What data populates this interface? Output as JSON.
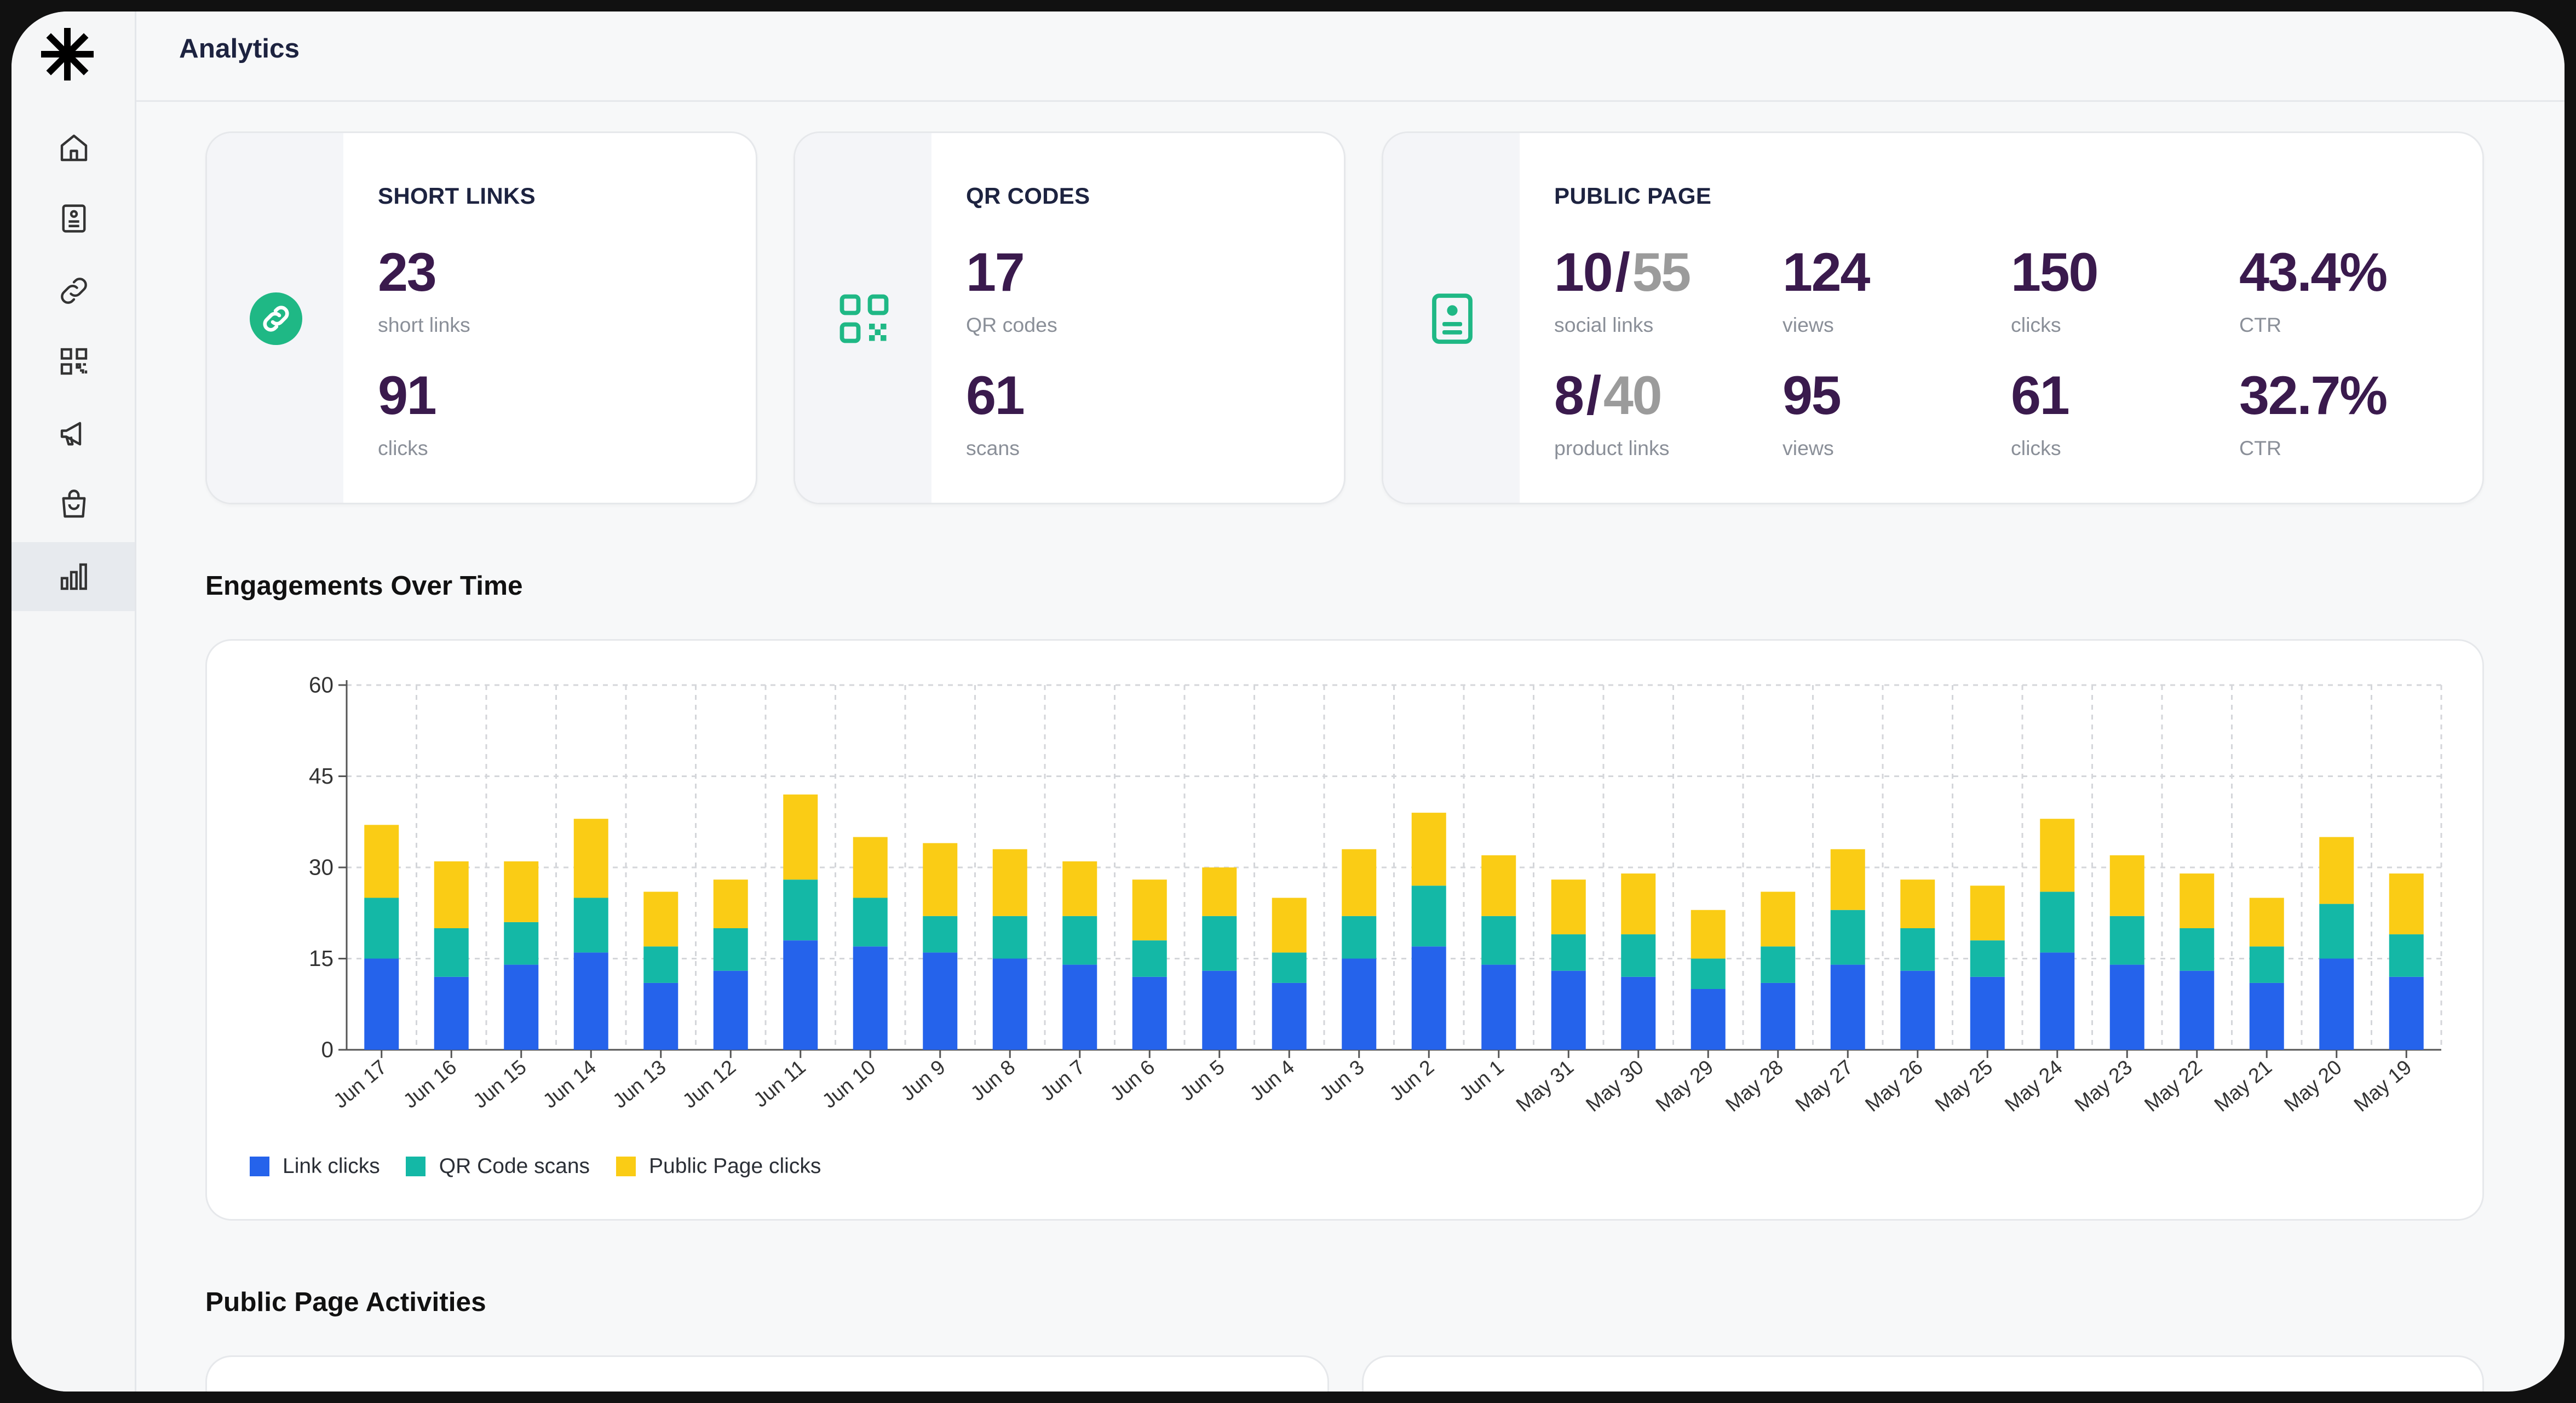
{
  "header": {
    "title": "Analytics"
  },
  "sidebar": {
    "items": [
      {
        "name": "home",
        "icon": "home-icon"
      },
      {
        "name": "pages",
        "icon": "document-icon"
      },
      {
        "name": "links",
        "icon": "link-icon"
      },
      {
        "name": "qr-codes",
        "icon": "qr-code-icon"
      },
      {
        "name": "campaigns",
        "icon": "megaphone-icon"
      },
      {
        "name": "shop",
        "icon": "shopping-bag-icon"
      },
      {
        "name": "analytics",
        "icon": "bar-chart-icon",
        "active": true
      }
    ]
  },
  "cards": {
    "short_links": {
      "title": "SHORT LINKS",
      "icon": "link-icon",
      "count": "23",
      "count_label": "short links",
      "clicks": "91",
      "clicks_label": "clicks"
    },
    "qr_codes": {
      "title": "QR CODES",
      "icon": "qr-code-icon",
      "count": "17",
      "count_label": "QR codes",
      "scans": "61",
      "scans_label": "scans"
    },
    "public_page": {
      "title": "PUBLIC PAGE",
      "icon": "contact-card-icon",
      "social": {
        "active": "10",
        "total": "55",
        "label": "social links",
        "views": "124",
        "views_label": "views",
        "clicks": "150",
        "clicks_label": "clicks",
        "ctr": "43.4%",
        "ctr_label": "CTR"
      },
      "product": {
        "active": "8",
        "total": "40",
        "label": "product links",
        "views": "95",
        "views_label": "views",
        "clicks": "61",
        "clicks_label": "clicks",
        "ctr": "32.7%",
        "ctr_label": "CTR"
      }
    }
  },
  "sections": {
    "engagements_title": "Engagements Over Time",
    "activities_title": "Public Page Activities"
  },
  "colors": {
    "accent": "#1fb885",
    "link": "#2563eb",
    "qr": "#14b8a6",
    "public": "#facc15",
    "number": "#3a1a4d"
  },
  "chart_data": {
    "type": "bar",
    "stacked": true,
    "title": "Engagements Over Time",
    "categories": [
      "Jun 17",
      "Jun 16",
      "Jun 15",
      "Jun 14",
      "Jun 13",
      "Jun 12",
      "Jun 11",
      "Jun 10",
      "Jun 9",
      "Jun 8",
      "Jun 7",
      "Jun 6",
      "Jun 5",
      "Jun 4",
      "Jun 3",
      "Jun 2",
      "Jun 1",
      "May 31",
      "May 30",
      "May 29",
      "May 28",
      "May 27",
      "May 26",
      "May 25",
      "May 24",
      "May 23",
      "May 22",
      "May 21",
      "May 20",
      "May 19"
    ],
    "series": [
      {
        "name": "Link clicks",
        "color": "#2563eb",
        "values": [
          15,
          12,
          14,
          16,
          11,
          13,
          18,
          17,
          16,
          15,
          14,
          12,
          13,
          11,
          15,
          17,
          14,
          13,
          12,
          10,
          11,
          14,
          13,
          12,
          16,
          14,
          13,
          11,
          15,
          12
        ]
      },
      {
        "name": "QR Code scans",
        "color": "#14b8a6",
        "values": [
          10,
          8,
          7,
          9,
          6,
          7,
          10,
          8,
          6,
          7,
          8,
          6,
          9,
          5,
          7,
          10,
          8,
          6,
          7,
          5,
          6,
          9,
          7,
          6,
          10,
          8,
          7,
          6,
          9,
          7
        ]
      },
      {
        "name": "Public Page clicks",
        "color": "#facc15",
        "values": [
          12,
          11,
          10,
          13,
          9,
          8,
          14,
          10,
          12,
          11,
          9,
          10,
          8,
          9,
          11,
          12,
          10,
          9,
          10,
          8,
          9,
          10,
          8,
          9,
          12,
          10,
          9,
          8,
          11,
          10
        ]
      }
    ],
    "ylim": [
      0,
      60
    ],
    "yticks": [
      0,
      15,
      30,
      45,
      60
    ],
    "xlabel": "",
    "ylabel": "",
    "grid": true,
    "legend": "bottom-left"
  }
}
